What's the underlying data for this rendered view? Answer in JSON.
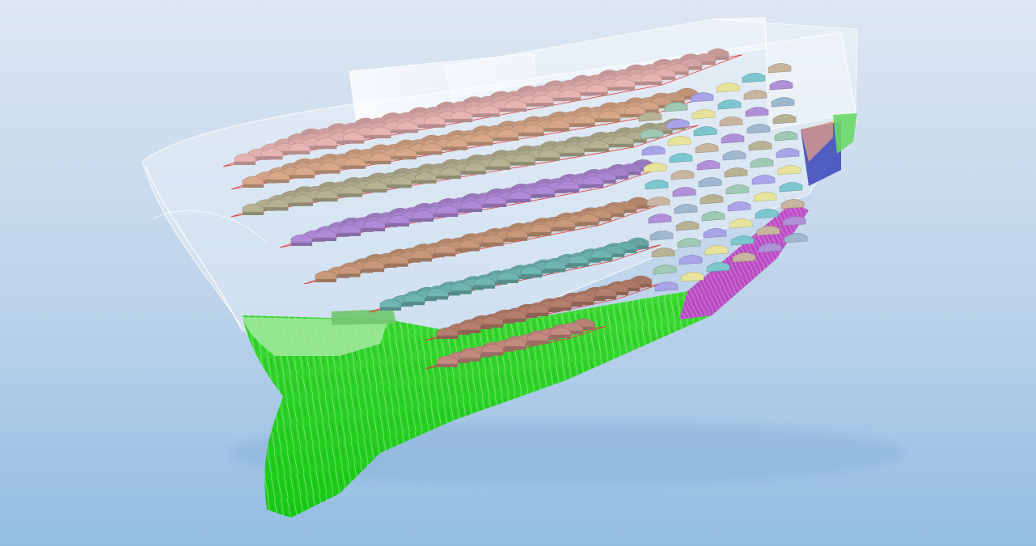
{
  "scene": {
    "subject": "",
    "background": {
      "top": "#dde7f1",
      "mid": "#bcd3ea",
      "bottom": "#93bde3"
    },
    "colors": {
      "hull_green": "#22d11c",
      "hull_green_light": "#8fe48c",
      "hull_magenta": "#c43ccf",
      "hull_blue": "#3a44b8",
      "shell_white": "#ffffff",
      "deck_outline": "#e23a3a"
    },
    "layers": [
      {
        "name": "deck-1",
        "color": "#e8b4b2"
      },
      {
        "name": "deck-2",
        "color": "#d9a88a"
      },
      {
        "name": "deck-3",
        "color": "#b7b294"
      },
      {
        "name": "deck-4",
        "color": "#b08ad8"
      },
      {
        "name": "deck-5",
        "color": "#c9987a"
      },
      {
        "name": "deck-6",
        "color": "#6fb5b0"
      },
      {
        "name": "deck-7",
        "color": "#b67f6d"
      },
      {
        "name": "deck-8",
        "color": "#c48a80"
      }
    ],
    "aft_colors": [
      "#b7b294",
      "#9fc8b5",
      "#a9a3e8",
      "#e6e39a",
      "#7cc6cf",
      "#c7b5a0",
      "#b090d8",
      "#9fb8d0"
    ]
  }
}
